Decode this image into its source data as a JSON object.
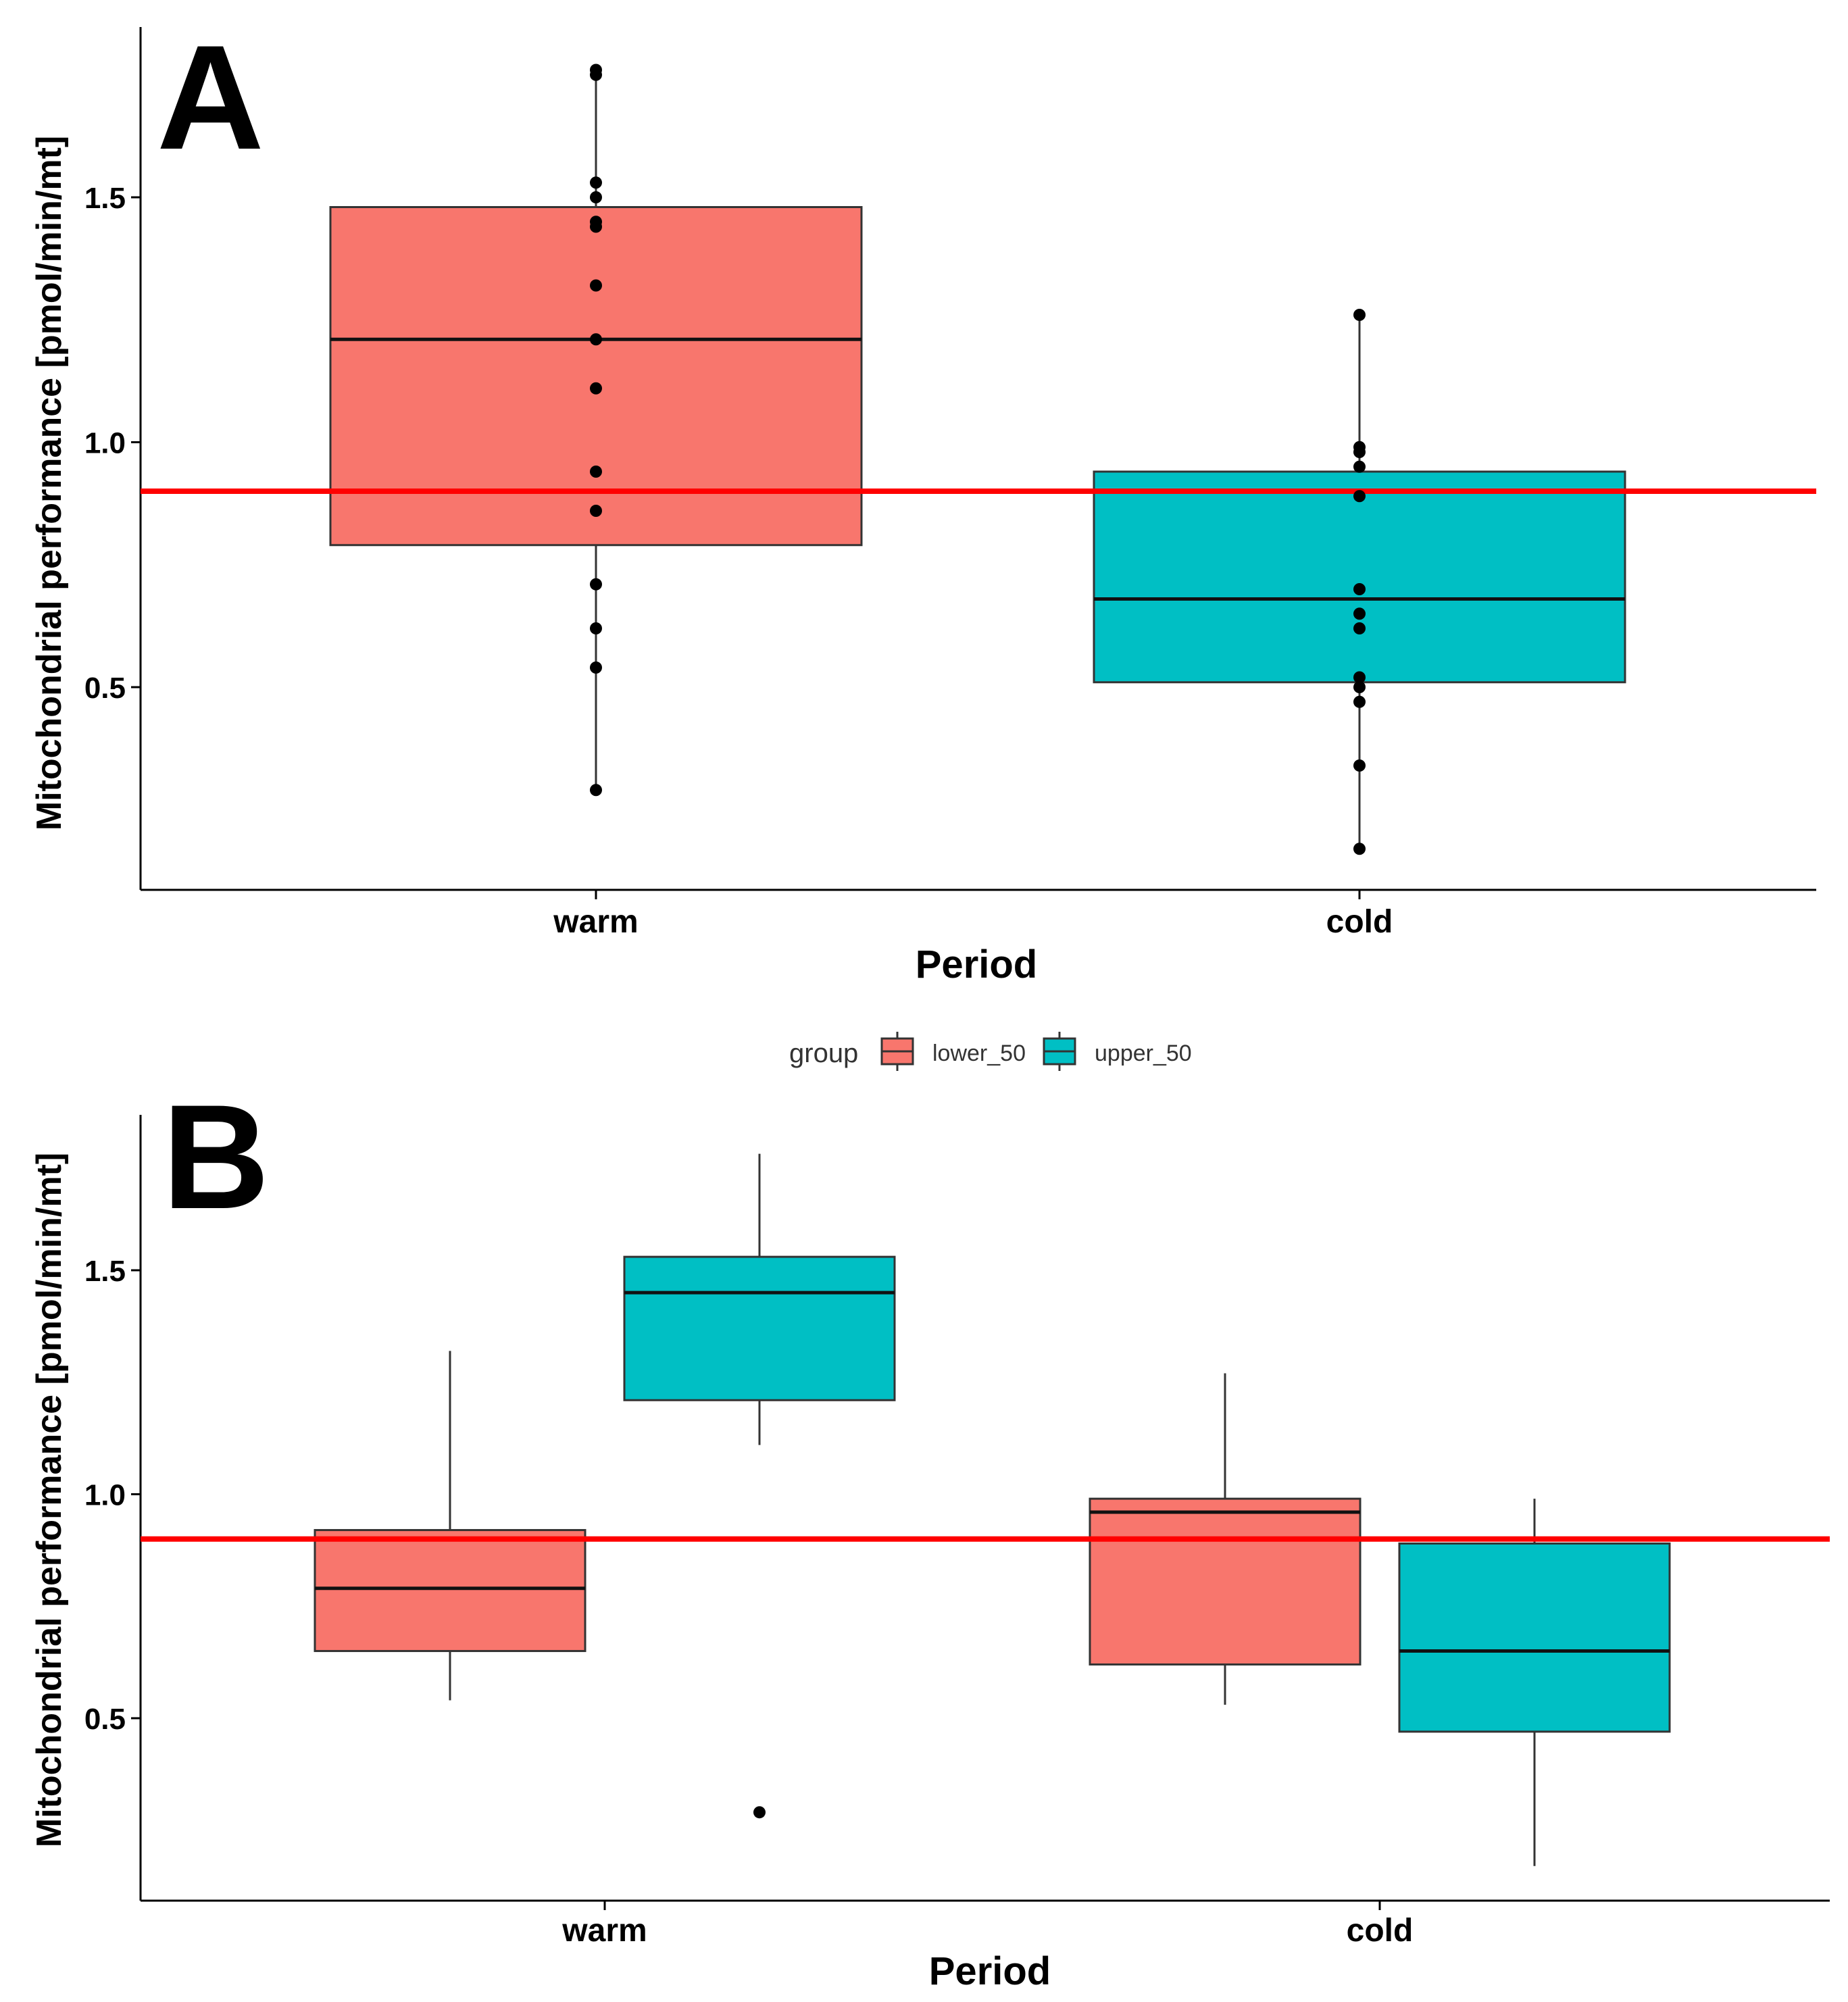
{
  "chart_data": [
    {
      "panel_label": "A",
      "type": "box",
      "xlabel": "Period",
      "ylabel": "Mitochondrial performance [pmol/min/mt]",
      "categories": [
        "warm",
        "cold"
      ],
      "ylim": [
        0.15,
        1.85
      ],
      "yticks": [
        0.5,
        1.0,
        1.5
      ],
      "ytick_labels": [
        "0.5",
        "1.0",
        "1.5"
      ],
      "reference_line": {
        "y": 0.9,
        "color": "#ff0000"
      },
      "boxes": [
        {
          "category": "warm",
          "fill": "#f8766d",
          "whisker_low": 0.29,
          "q1": 0.79,
          "median": 1.21,
          "q3": 1.48,
          "whisker_high": 1.76
        },
        {
          "category": "cold",
          "fill": "#00bfc4",
          "whisker_low": 0.17,
          "q1": 0.51,
          "median": 0.68,
          "q3": 0.94,
          "whisker_high": 1.26
        }
      ],
      "points": [
        {
          "category": "warm",
          "values": [
            1.76,
            1.75,
            1.53,
            1.5,
            1.45,
            1.44,
            1.32,
            1.21,
            1.11,
            0.94,
            0.86,
            0.71,
            0.62,
            0.54,
            0.29
          ]
        },
        {
          "category": "cold",
          "values": [
            1.26,
            0.99,
            0.98,
            0.95,
            0.89,
            0.7,
            0.65,
            0.62,
            0.52,
            0.5,
            0.47,
            0.34,
            0.17
          ]
        }
      ],
      "grid": false
    },
    {
      "panel_label": "B",
      "type": "box",
      "xlabel": "Period",
      "ylabel": "Mitochondrial performance [pmol/min/mt]",
      "categories": [
        "warm",
        "cold"
      ],
      "ylim": [
        0.1,
        1.85
      ],
      "yticks": [
        0.5,
        1.0,
        1.5
      ],
      "ytick_labels": [
        "0.5",
        "1.0",
        "1.5"
      ],
      "reference_line": {
        "y": 0.9,
        "color": "#ff0000"
      },
      "legend": {
        "title": "group",
        "position": "top",
        "entries": [
          {
            "label": "lower_50",
            "color": "#f8766d"
          },
          {
            "label": "upper_50",
            "color": "#00bfc4"
          }
        ]
      },
      "series": [
        {
          "name": "lower_50",
          "fill": "#f8766d",
          "boxes": [
            {
              "category": "warm",
              "whisker_low": 0.54,
              "q1": 0.65,
              "median": 0.79,
              "q3": 0.92,
              "whisker_high": 1.32,
              "outliers": []
            },
            {
              "category": "cold",
              "whisker_low": 0.53,
              "q1": 0.62,
              "median": 0.96,
              "q3": 0.99,
              "whisker_high": 1.27,
              "outliers": []
            }
          ]
        },
        {
          "name": "upper_50",
          "fill": "#00bfc4",
          "boxes": [
            {
              "category": "warm",
              "whisker_low": 1.11,
              "q1": 1.21,
              "median": 1.45,
              "q3": 1.53,
              "whisker_high": 1.76,
              "outliers": [
                0.29
              ]
            },
            {
              "category": "cold",
              "whisker_low": 0.17,
              "q1": 0.47,
              "median": 0.65,
              "q3": 0.89,
              "whisker_high": 0.99,
              "outliers": []
            }
          ]
        }
      ],
      "grid": false
    }
  ]
}
